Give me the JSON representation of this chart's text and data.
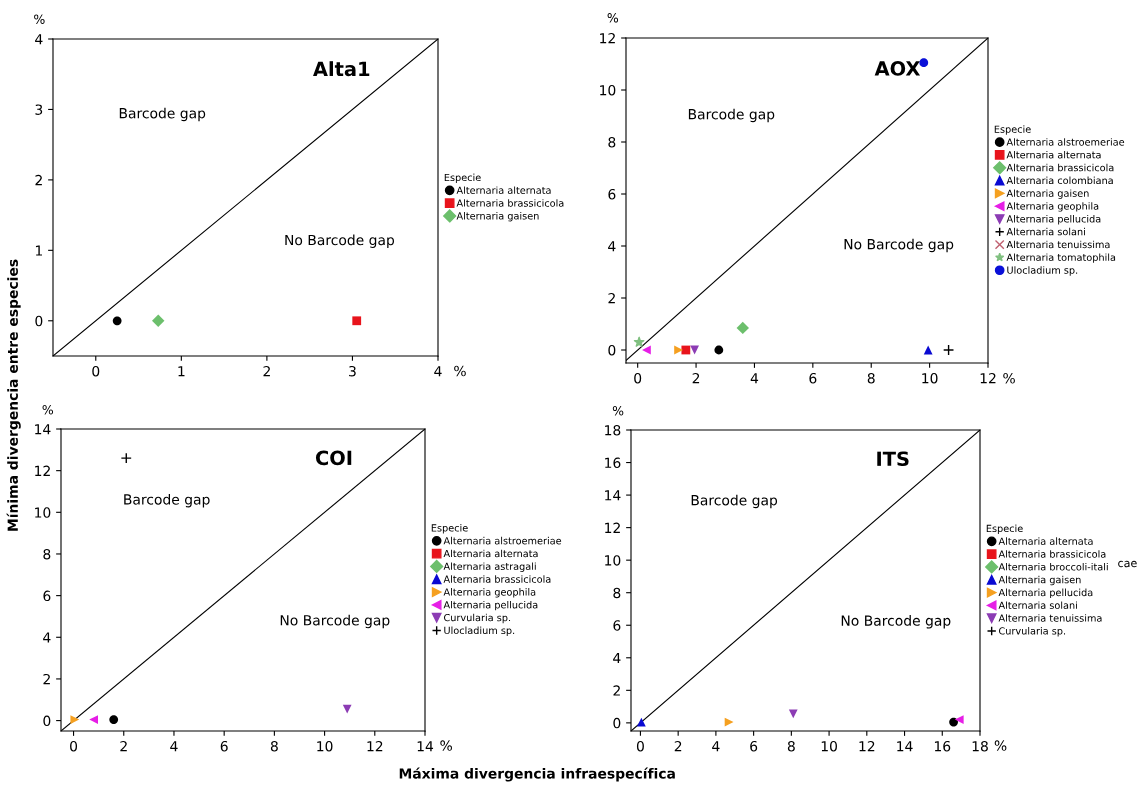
{
  "chart_data": [
    {
      "type": "scatter",
      "title": "Alta1",
      "xlabel": "%",
      "ylabel": "%",
      "legend_title": "Especie",
      "legend": "right",
      "grid": false,
      "xlim": [
        -0.5,
        4
      ],
      "ylim": [
        -0.5,
        4
      ],
      "xticks": [
        0,
        1,
        2,
        3,
        4
      ],
      "yticks": [
        0,
        1,
        2,
        3,
        4
      ],
      "annotations": [
        "Barcode gap",
        "No Barcode gap",
        "Mínima divergencia entre especies"
      ],
      "series": [
        {
          "name": "Alternaria alternata",
          "color": "#000000",
          "marker": "circle",
          "x": [
            0.25
          ],
          "values": [
            0
          ]
        },
        {
          "name": "Alternaria brassicicola",
          "color": "#e8141c",
          "marker": "square",
          "x": [
            3.05
          ],
          "values": [
            0
          ]
        },
        {
          "name": "Alternaria gaisen",
          "color": "#6cbf6c",
          "marker": "diamond",
          "x": [
            0.73
          ],
          "values": [
            0
          ]
        },
        {
          "type": "line",
          "color": "#000000",
          "x": [
            -0.5,
            4
          ],
          "values": [
            -0.5,
            4
          ]
        }
      ]
    },
    {
      "type": "scatter",
      "title": "AOX",
      "xlabel": "%",
      "ylabel": "%",
      "legend_title": "Especie",
      "legend": "right",
      "grid": false,
      "xlim": [
        -0.4,
        12
      ],
      "ylim": [
        -0.5,
        12
      ],
      "xticks": [
        0,
        2,
        4,
        6,
        8,
        10,
        12
      ],
      "yticks": [
        0,
        2,
        4,
        6,
        8,
        10,
        12
      ],
      "annotations": [
        "Barcode gap",
        "No Barcode gap"
      ],
      "series": [
        {
          "name": "Alternaria alstroemeriae",
          "color": "#000000",
          "marker": "circle",
          "x": [
            2.78
          ],
          "values": [
            0
          ]
        },
        {
          "name": "Alternaria alternata",
          "color": "#e8141c",
          "marker": "square",
          "x": [
            1.65
          ],
          "values": [
            0
          ]
        },
        {
          "name": "Alternaria brassicicola",
          "color": "#6cbf6c",
          "marker": "diamond",
          "x": [
            3.6
          ],
          "values": [
            0.85
          ]
        },
        {
          "name": "Alternaria colombiana",
          "color": "#0a0ad2",
          "marker": "triangle",
          "x": [
            9.95
          ],
          "values": [
            0
          ]
        },
        {
          "name": "Alternaria gaisen",
          "color": "#f5a020",
          "marker": "triangle-right",
          "x": [
            1.4
          ],
          "values": [
            0
          ]
        },
        {
          "name": "Alternaria geophila",
          "color": "#e61ee6",
          "marker": "triangle-left",
          "x": [
            0.3
          ],
          "values": [
            0
          ]
        },
        {
          "name": "Alternaria pellucida",
          "color": "#8c3cb4",
          "marker": "triangle-down",
          "x": [
            1.95
          ],
          "values": [
            0
          ]
        },
        {
          "name": "Alternaria solani",
          "color": "#000000",
          "marker": "plus",
          "x": [
            10.65
          ],
          "values": [
            0
          ]
        },
        {
          "name": "Alternaria tenuissima",
          "color": "#c06070",
          "marker": "cross",
          "x": [
            null
          ],
          "values": [
            null
          ]
        },
        {
          "name": "Alternaria tomatophila",
          "color": "#80c080",
          "marker": "star",
          "x": [
            0.05
          ],
          "values": [
            0.3
          ]
        },
        {
          "name": "Ulocladium sp.",
          "color": "#0a10d8",
          "marker": "circle",
          "x": [
            9.8
          ],
          "values": [
            11.05
          ]
        },
        {
          "type": "line",
          "color": "#000000",
          "x": [
            -0.4,
            12
          ],
          "values": [
            -0.4,
            12
          ]
        }
      ]
    },
    {
      "type": "scatter",
      "title": "COI",
      "xlabel": "%",
      "ylabel": "%",
      "legend_title": "Especie",
      "legend": "right",
      "grid": false,
      "xlim": [
        -0.5,
        14
      ],
      "ylim": [
        -0.5,
        14
      ],
      "xticks": [
        0,
        2,
        4,
        6,
        8,
        10,
        12,
        14
      ],
      "yticks": [
        0,
        2,
        4,
        6,
        8,
        10,
        12,
        14
      ],
      "annotations": [
        "Barcode gap",
        "No Barcode gap",
        "Máxima divergencia infraespecífica"
      ],
      "series": [
        {
          "name": "Alternaria alstroemeriae",
          "color": "#000000",
          "marker": "circle",
          "x": [
            1.6
          ],
          "values": [
            0.05
          ]
        },
        {
          "name": "Alternaria alternata",
          "color": "#e8141c",
          "marker": "square",
          "x": [
            null
          ],
          "values": [
            null
          ]
        },
        {
          "name": "Alternaria astragali",
          "color": "#6cbf6c",
          "marker": "diamond",
          "x": [
            null
          ],
          "values": [
            null
          ]
        },
        {
          "name": "Alternaria brassicicola",
          "color": "#0a0ad2",
          "marker": "triangle",
          "x": [
            null
          ],
          "values": [
            null
          ]
        },
        {
          "name": "Alternaria geophila",
          "color": "#f5a020",
          "marker": "triangle-right",
          "x": [
            0.05
          ],
          "values": [
            0.05
          ]
        },
        {
          "name": "Alternaria pellucida",
          "color": "#e61ee6",
          "marker": "triangle-left",
          "x": [
            0.8
          ],
          "values": [
            0.05
          ]
        },
        {
          "name": "Curvularia sp.",
          "color": "#8c3cb4",
          "marker": "triangle-down",
          "x": [
            10.9
          ],
          "values": [
            0.55
          ]
        },
        {
          "name": "Ulocladium sp.",
          "color": "#000000",
          "marker": "plus",
          "x": [
            2.1
          ],
          "values": [
            12.6
          ]
        },
        {
          "type": "line",
          "color": "#000000",
          "x": [
            -0.5,
            14
          ],
          "values": [
            -0.5,
            14
          ]
        }
      ]
    },
    {
      "type": "scatter",
      "title": "ITS",
      "xlabel": "%",
      "ylabel": "%",
      "legend_title": "Especie",
      "legend": "right",
      "grid": false,
      "xlim": [
        -0.5,
        18
      ],
      "ylim": [
        -0.5,
        18
      ],
      "xticks": [
        0,
        2,
        4,
        6,
        8,
        10,
        12,
        14,
        16,
        18
      ],
      "yticks": [
        0,
        2,
        4,
        6,
        8,
        10,
        12,
        14,
        16,
        18
      ],
      "annotations": [
        "Barcode gap",
        "No Barcode gap",
        "cae"
      ],
      "series": [
        {
          "name": "Alternaria alternata",
          "color": "#000000",
          "marker": "circle",
          "x": [
            16.6
          ],
          "values": [
            0.05
          ]
        },
        {
          "name": "Alternaria brassicicola",
          "color": "#e8141c",
          "marker": "square",
          "x": [
            null
          ],
          "values": [
            null
          ]
        },
        {
          "name": "Alternaria broccoli-itali",
          "color": "#6cbf6c",
          "marker": "diamond",
          "x": [
            null
          ],
          "values": [
            null
          ]
        },
        {
          "name": "Alternaria gaisen",
          "color": "#0a0ad2",
          "marker": "triangle",
          "x": [
            0.05
          ],
          "values": [
            0.05
          ]
        },
        {
          "name": "Alternaria pellucida",
          "color": "#f5a020",
          "marker": "triangle-right",
          "x": [
            4.7
          ],
          "values": [
            0.05
          ]
        },
        {
          "name": "Alternaria solani",
          "color": "#e61ee6",
          "marker": "triangle-left",
          "x": [
            16.9
          ],
          "values": [
            0.2
          ]
        },
        {
          "name": "Alternaria tenuissima",
          "color": "#8c3cb4",
          "marker": "triangle-down",
          "x": [
            8.1
          ],
          "values": [
            0.55
          ]
        },
        {
          "name": "Curvularia sp.",
          "color": "#000000",
          "marker": "plus",
          "x": [
            null
          ],
          "values": [
            null
          ]
        },
        {
          "type": "line",
          "color": "#000000",
          "x": [
            -0.5,
            18
          ],
          "values": [
            -0.5,
            18
          ]
        }
      ]
    }
  ]
}
